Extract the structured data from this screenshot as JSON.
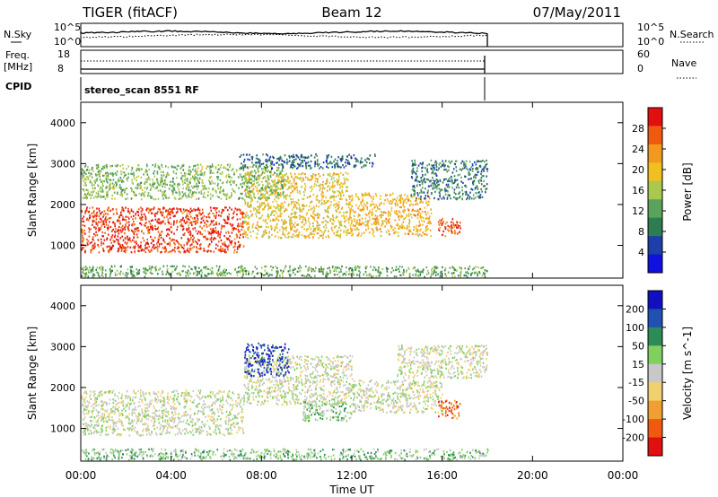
{
  "header": {
    "title": "TIGER (fitACF)",
    "beam": "Beam 12",
    "date": "07/May/2011"
  },
  "top_panels": {
    "nsky_label": "N.Sky",
    "nsky_ticks": [
      "10^5",
      "10^0"
    ],
    "nsearch_label": "N.Search",
    "freq_label": "Freq.",
    "freq_unit": "[MHz]",
    "freq_ticks": [
      "18",
      "8"
    ],
    "nave_label": "Nave",
    "nave_ticks": [
      "60",
      "0"
    ],
    "cpid_label": "CPID",
    "cpid_text": "stereo_scan 8551 RF"
  },
  "colors": {
    "power": [
      "#1010e0",
      "#1f3fa8",
      "#2e7d52",
      "#5aa35a",
      "#a8c850",
      "#f0c020",
      "#f09a20",
      "#f05a10",
      "#e01010"
    ],
    "velocity": [
      "#e01010",
      "#f05a10",
      "#f0a030",
      "#f0d070",
      "#c8c8c8",
      "#80d060",
      "#2e8b57",
      "#2050b0",
      "#1010c0"
    ]
  },
  "chart_data": [
    {
      "type": "heatmap",
      "name": "power",
      "ylabel": "Slant Range [km]",
      "yticks": [
        "4000",
        "3000",
        "2000",
        "1000"
      ],
      "ylim": [
        200,
        4500
      ],
      "colorbar_label": "Power [dB]",
      "colorbar_ticks": [
        "28",
        "24",
        "20",
        "16",
        "12",
        "8",
        "4"
      ],
      "regions": [
        {
          "t0": 0.0,
          "t1": 7.2,
          "r0": 850,
          "r1": 1950,
          "level": 7.5
        },
        {
          "t0": 7.2,
          "t1": 11.8,
          "r0": 1200,
          "r1": 2800,
          "level": 5
        },
        {
          "t0": 11.8,
          "t1": 15.5,
          "r0": 1250,
          "r1": 2300,
          "level": 5.5
        },
        {
          "t0": 0.0,
          "t1": 9.0,
          "r0": 2150,
          "r1": 3000,
          "level": 3.5
        },
        {
          "t0": 7.0,
          "t1": 13.0,
          "r0": 2900,
          "r1": 3250,
          "level": 1.5
        },
        {
          "t0": 14.6,
          "t1": 18.0,
          "r0": 2150,
          "r1": 3100,
          "level": 2
        },
        {
          "t0": 15.8,
          "t1": 16.8,
          "r0": 1250,
          "r1": 1700,
          "level": 7
        },
        {
          "t0": 0.0,
          "t1": 18.0,
          "r0": 250,
          "r1": 520,
          "level": 3
        }
      ]
    },
    {
      "type": "heatmap",
      "name": "velocity",
      "ylabel": "Slant Range [km]",
      "yticks": [
        "4000",
        "3000",
        "2000",
        "1000"
      ],
      "ylim": [
        200,
        4500
      ],
      "colorbar_label": "Velocity [m s^-1]",
      "colorbar_ticks": [
        "200",
        "100",
        "50",
        "15",
        "-15",
        "-50",
        "-100",
        "-200"
      ],
      "regions": [
        {
          "t0": 0.0,
          "t1": 7.2,
          "r0": 850,
          "r1": 1950,
          "level": 4
        },
        {
          "t0": 7.2,
          "t1": 12.0,
          "r0": 1600,
          "r1": 2800,
          "level": 4
        },
        {
          "t0": 9.8,
          "t1": 12.0,
          "r0": 1200,
          "r1": 1700,
          "level": 5
        },
        {
          "t0": 12.0,
          "t1": 16.0,
          "r0": 1400,
          "r1": 2200,
          "level": 4
        },
        {
          "t0": 7.2,
          "t1": 9.2,
          "r0": 2300,
          "r1": 3100,
          "level": 7.5
        },
        {
          "t0": 15.8,
          "t1": 16.8,
          "r0": 1250,
          "r1": 1700,
          "level": 1
        },
        {
          "t0": 0.0,
          "t1": 18.0,
          "r0": 250,
          "r1": 520,
          "level": 5
        },
        {
          "t0": 14.0,
          "t1": 18.0,
          "r0": 2250,
          "r1": 3050,
          "level": 4
        }
      ]
    }
  ],
  "xaxis": {
    "label": "Time UT",
    "ticks": [
      "00:00",
      "04:00",
      "08:00",
      "12:00",
      "16:00",
      "20:00",
      "00:00"
    ],
    "range_hours": [
      0,
      24
    ],
    "data_end_hours": 18
  }
}
